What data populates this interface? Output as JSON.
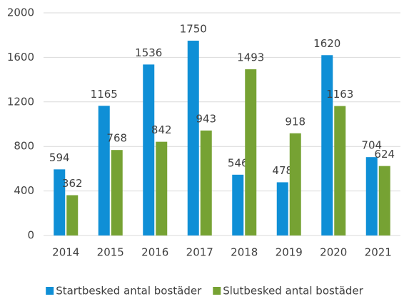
{
  "chart_data": {
    "type": "bar",
    "categories": [
      "2014",
      "2015",
      "2016",
      "2017",
      "2018",
      "2019",
      "2020",
      "2021"
    ],
    "series": [
      {
        "name": "Startbesked antal bostäder",
        "color": "#0f8fd6",
        "values": [
          594,
          1165,
          1536,
          1750,
          546,
          478,
          1620,
          704
        ]
      },
      {
        "name": "Slutbesked antal bostäder",
        "color": "#76a233",
        "values": [
          362,
          768,
          842,
          943,
          1493,
          918,
          1163,
          624
        ]
      }
    ],
    "ylim": [
      0,
      2000
    ],
    "yticks": [
      0,
      400,
      800,
      1200,
      1600,
      2000
    ],
    "grid": true,
    "legend": "bottom"
  }
}
